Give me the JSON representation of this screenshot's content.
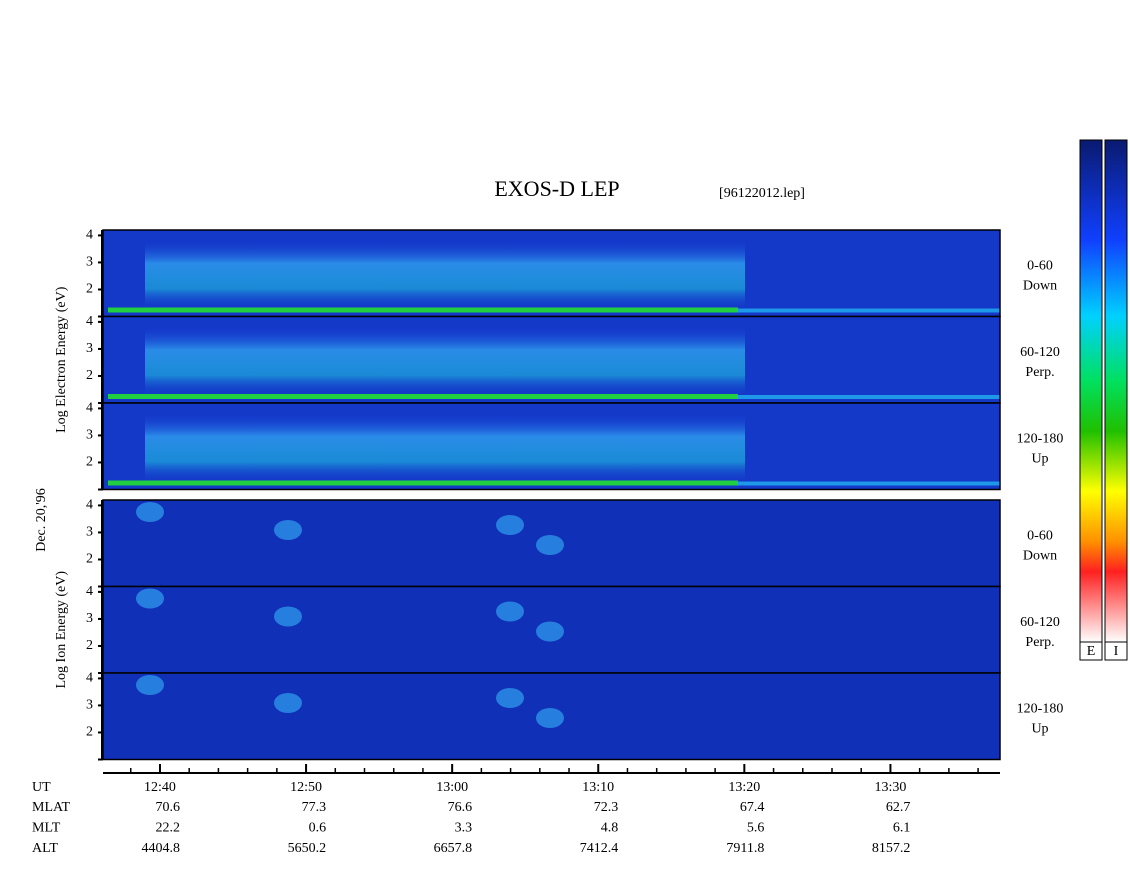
{
  "chart_data": {
    "type": "spectrogram",
    "title": "EXOS-D LEP",
    "file": "[96122012.lep]",
    "date_label": "Dec. 20,'96",
    "ylim": [
      1,
      4.2
    ],
    "yticks": [
      2,
      3,
      4
    ],
    "xlim": [
      756.1,
      817.5
    ],
    "xticks": [
      {
        "value": 760,
        "label": "12:40"
      },
      {
        "value": 770,
        "label": "12:50"
      },
      {
        "value": 780,
        "label": "13:00"
      },
      {
        "value": 790,
        "label": "13:10"
      },
      {
        "value": 800,
        "label": "13:20"
      },
      {
        "value": 810,
        "label": "13:30"
      }
    ],
    "minor_xticks": [
      758,
      762,
      764,
      766,
      768,
      772,
      774,
      776,
      778,
      782,
      784,
      786,
      788,
      792,
      794,
      796,
      798,
      802,
      804,
      806,
      808,
      812,
      814,
      816
    ],
    "xlabel": "UT",
    "groups": [
      {
        "ylabel": "Log Electron Energy (eV)",
        "panels": [
          {
            "pitch": "0-60",
            "dir": "Down"
          },
          {
            "pitch": "60-120",
            "dir": "Perp."
          },
          {
            "pitch": "120-180",
            "dir": "Up"
          }
        ]
      },
      {
        "ylabel": "Log Ion Energy (eV)",
        "panels": [
          {
            "pitch": "0-60",
            "dir": "Down"
          },
          {
            "pitch": "60-120",
            "dir": "Perp."
          },
          {
            "pitch": "120-180",
            "dir": "Up"
          }
        ]
      }
    ],
    "orbit_rows": [
      {
        "label": "MLAT",
        "values": [
          70.6,
          77.3,
          76.6,
          72.3,
          67.4,
          62.7
        ]
      },
      {
        "label": "MLT",
        "values": [
          22.2,
          0.6,
          3.3,
          4.8,
          5.6,
          6.1
        ]
      },
      {
        "label": "ALT",
        "values": [
          4404.8,
          5650.2,
          6657.8,
          7412.4,
          7911.8,
          8157.2
        ]
      }
    ],
    "colorbars": [
      "E",
      "I"
    ]
  }
}
